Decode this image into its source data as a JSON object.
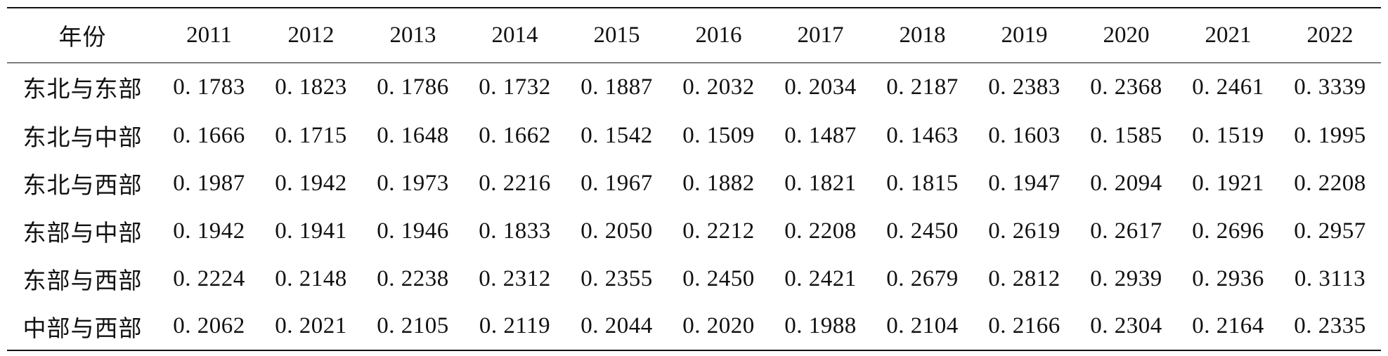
{
  "table": {
    "header_label": "年份",
    "years": [
      "2011",
      "2012",
      "2013",
      "2014",
      "2015",
      "2016",
      "2017",
      "2018",
      "2019",
      "2020",
      "2021",
      "2022"
    ],
    "rows": [
      {
        "label": "东北与东部",
        "values": [
          "0. 1783",
          "0. 1823",
          "0. 1786",
          "0. 1732",
          "0. 1887",
          "0. 2032",
          "0. 2034",
          "0. 2187",
          "0. 2383",
          "0. 2368",
          "0. 2461",
          "0. 3339"
        ]
      },
      {
        "label": "东北与中部",
        "values": [
          "0. 1666",
          "0. 1715",
          "0. 1648",
          "0. 1662",
          "0. 1542",
          "0. 1509",
          "0. 1487",
          "0. 1463",
          "0. 1603",
          "0. 1585",
          "0. 1519",
          "0. 1995"
        ]
      },
      {
        "label": "东北与西部",
        "values": [
          "0. 1987",
          "0. 1942",
          "0. 1973",
          "0. 2216",
          "0. 1967",
          "0. 1882",
          "0. 1821",
          "0. 1815",
          "0. 1947",
          "0. 2094",
          "0. 1921",
          "0. 2208"
        ]
      },
      {
        "label": "东部与中部",
        "values": [
          "0. 1942",
          "0. 1941",
          "0. 1946",
          "0. 1833",
          "0. 2050",
          "0. 2212",
          "0. 2208",
          "0. 2450",
          "0. 2619",
          "0. 2617",
          "0. 2696",
          "0. 2957"
        ]
      },
      {
        "label": "东部与西部",
        "values": [
          "0. 2224",
          "0. 2148",
          "0. 2238",
          "0. 2312",
          "0. 2355",
          "0. 2450",
          "0. 2421",
          "0. 2679",
          "0. 2812",
          "0. 2939",
          "0. 2936",
          "0. 3113"
        ]
      },
      {
        "label": "中部与西部",
        "values": [
          "0. 2062",
          "0. 2021",
          "0. 2105",
          "0. 2119",
          "0. 2044",
          "0. 2020",
          "0. 1988",
          "0. 2104",
          "0. 2166",
          "0. 2304",
          "0. 2164",
          "0. 2335"
        ]
      }
    ]
  }
}
